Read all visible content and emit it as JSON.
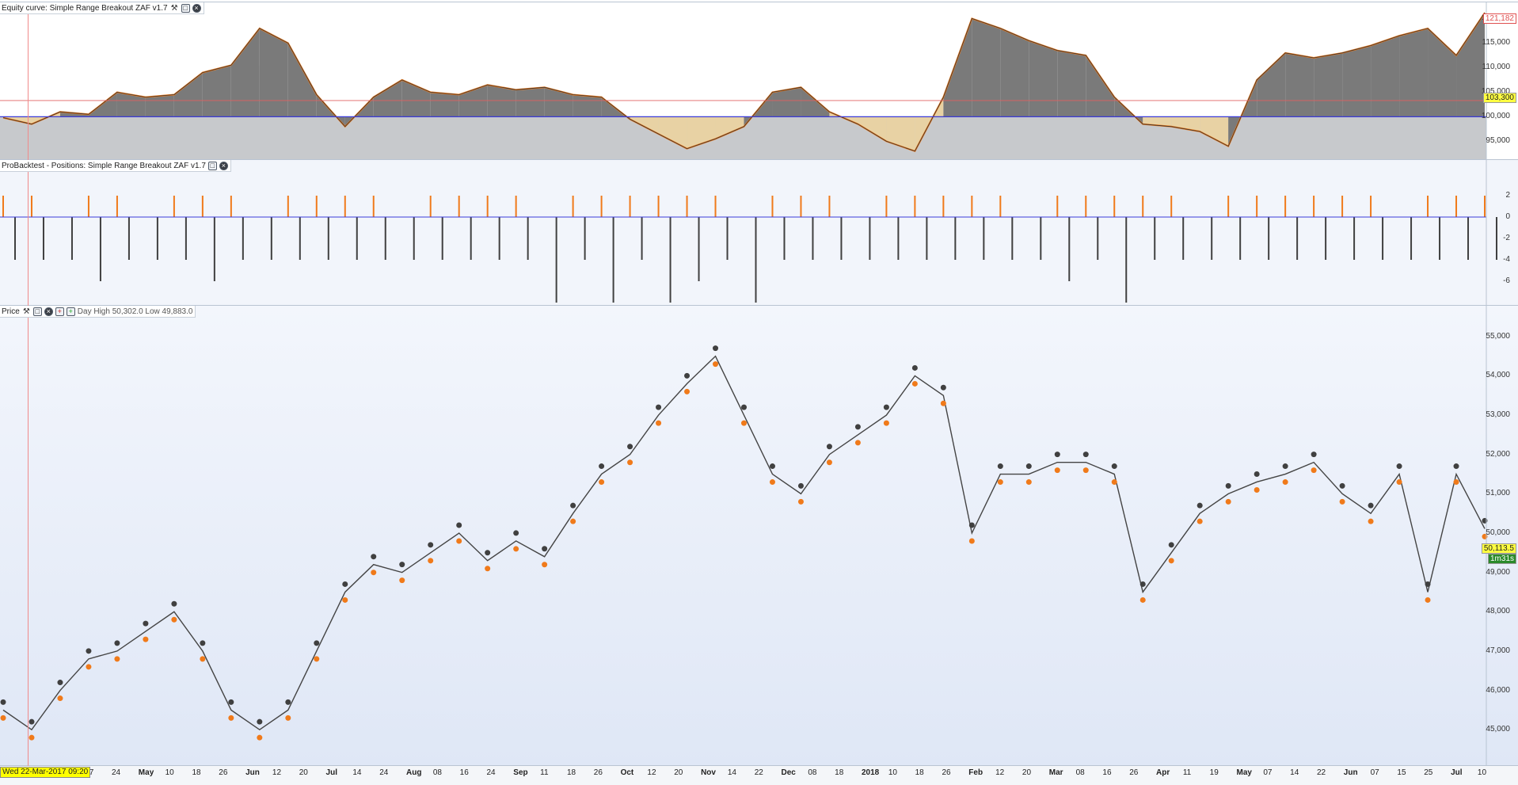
{
  "panels": {
    "equity": {
      "title": "Equity curve: Simple Range Breakout ZAF v1.7",
      "y_ticks": [
        "120,000",
        "115,000",
        "110,000",
        "105,000",
        "100,000",
        "95,000"
      ],
      "y_tick_values": [
        120000,
        115000,
        110000,
        105000,
        100000,
        95000
      ],
      "last_value": "121,182",
      "ref_value": "103,300",
      "colors": {
        "gain": "#7a7a7a",
        "loss": "#e8d2a4",
        "line": "#f07a1a",
        "base": "#3a3ad8",
        "ref": "#e06060"
      }
    },
    "positions": {
      "title": "ProBacktest - Positions: Simple Range Breakout ZAF v1.7",
      "y_ticks": [
        "2",
        "0",
        "-2",
        "-4",
        "-6"
      ],
      "y_tick_values": [
        2,
        0,
        -2,
        -4,
        -6
      ],
      "colors": {
        "long": "#f07a1a",
        "short": "#404040",
        "zero": "#3a3ad8"
      }
    },
    "price": {
      "title": "Price",
      "overlay_text": "Day High 50,302.0  Low 49,883.0",
      "y_ticks": [
        "55,000",
        "54,000",
        "53,000",
        "52,000",
        "51,000",
        "50,000",
        "49,000",
        "48,000",
        "47,000",
        "46,000",
        "45,000"
      ],
      "y_tick_values": [
        55000,
        54000,
        53000,
        52000,
        51000,
        50000,
        49000,
        48000,
        47000,
        46000,
        45000
      ],
      "last_price": "50,113.5",
      "timer": "1m31s",
      "colors": {
        "candle": "#444444",
        "buy": "#f07a1a",
        "sell": "#404040",
        "green": "#3a9a3a",
        "red": "#cc2222"
      }
    }
  },
  "x_axis": {
    "date_stamp": "Wed 22-Mar-2017 09:20",
    "labels": [
      "17",
      "24",
      "May",
      "10",
      "18",
      "26",
      "Jun",
      "12",
      "20",
      "Jul",
      "14",
      "24",
      "Aug",
      "08",
      "16",
      "24",
      "Sep",
      "11",
      "18",
      "26",
      "Oct",
      "12",
      "20",
      "Nov",
      "14",
      "22",
      "Dec",
      "08",
      "18",
      "2018",
      "10",
      "18",
      "26",
      "Feb",
      "12",
      "20",
      "Mar",
      "08",
      "16",
      "26",
      "Apr",
      "11",
      "19",
      "May",
      "07",
      "14",
      "22",
      "Jun",
      "07",
      "15",
      "25",
      "Jul",
      "10"
    ],
    "bold_labels": [
      "May",
      "Jun",
      "Jul",
      "Aug",
      "Sep",
      "Oct",
      "Nov",
      "Dec",
      "2018",
      "Feb",
      "Mar",
      "Apr",
      "May",
      "Jun",
      "Jul"
    ]
  },
  "chart_data": [
    {
      "type": "area",
      "title": "Equity curve: Simple Range Breakout ZAF v1.7",
      "ylim": [
        92000,
        122000
      ],
      "baseline": 100000,
      "x": [
        "17",
        "24",
        "May",
        "10",
        "18",
        "26",
        "Jun",
        "12",
        "20",
        "Jul",
        "14",
        "24",
        "Aug",
        "08",
        "16",
        "24",
        "Sep",
        "11",
        "18",
        "26",
        "Oct",
        "12",
        "20",
        "Nov",
        "14",
        "22",
        "Dec",
        "08",
        "18",
        "2018",
        "10",
        "18",
        "26",
        "Feb",
        "12",
        "20",
        "Mar",
        "08",
        "16",
        "26",
        "Apr",
        "11",
        "19",
        "May",
        "07",
        "14",
        "22",
        "Jun",
        "07",
        "15",
        "25",
        "Jul",
        "10"
      ],
      "values": [
        99800,
        98500,
        101000,
        100500,
        105000,
        104000,
        104500,
        109000,
        110500,
        118000,
        115000,
        104500,
        98000,
        104000,
        107500,
        105000,
        104500,
        106500,
        105500,
        106000,
        104500,
        104000,
        99500,
        96500,
        93500,
        95500,
        98000,
        105000,
        106000,
        101000,
        98500,
        95000,
        93000,
        104000,
        120000,
        118000,
        115500,
        113500,
        112500,
        104000,
        98500,
        98000,
        97000,
        94000,
        107500,
        113000,
        112000,
        113000,
        114500,
        116500,
        118000,
        112500,
        121182
      ]
    },
    {
      "type": "bar",
      "title": "ProBacktest - Positions: Simple Range Breakout ZAF v1.7",
      "ylim": [
        -8,
        4
      ],
      "series": [
        {
          "name": "long",
          "values": [
            2,
            2,
            0,
            2,
            2,
            0,
            2,
            2,
            2,
            0,
            2,
            2,
            2,
            2,
            0,
            2,
            2,
            2,
            2,
            0,
            2,
            2,
            2,
            2,
            2,
            2,
            0,
            2,
            2,
            2,
            0,
            2,
            2,
            2,
            2,
            2,
            0,
            2,
            2,
            2,
            2,
            2,
            0,
            2,
            2,
            2,
            2,
            2,
            2,
            0,
            2,
            2,
            2
          ]
        },
        {
          "name": "short",
          "values": [
            -4,
            -4,
            -4,
            -6,
            -4,
            -4,
            -4,
            -6,
            -4,
            -4,
            -4,
            -4,
            -4,
            -4,
            -4,
            -4,
            -4,
            -4,
            -4,
            -8,
            -4,
            -8,
            -4,
            -8,
            -6,
            -4,
            -8,
            -4,
            -4,
            -4,
            -4,
            -4,
            -4,
            -4,
            -4,
            -4,
            -4,
            -6,
            -4,
            -8,
            -4,
            -4,
            -4,
            -4,
            -4,
            -4,
            -4,
            -4,
            -4,
            -4,
            -4,
            -4,
            -4
          ]
        }
      ]
    },
    {
      "type": "line",
      "title": "Price",
      "ylim": [
        44500,
        55500
      ],
      "x": [
        "17",
        "24",
        "May",
        "10",
        "18",
        "26",
        "Jun",
        "12",
        "20",
        "Jul",
        "14",
        "24",
        "Aug",
        "08",
        "16",
        "24",
        "Sep",
        "11",
        "18",
        "26",
        "Oct",
        "12",
        "20",
        "Nov",
        "14",
        "22",
        "Dec",
        "08",
        "18",
        "2018",
        "10",
        "18",
        "26",
        "Feb",
        "12",
        "20",
        "Mar",
        "08",
        "16",
        "26",
        "Apr",
        "11",
        "19",
        "May",
        "07",
        "14",
        "22",
        "Jun",
        "07",
        "15",
        "25",
        "Jul",
        "10"
      ],
      "values": [
        45500,
        45000,
        46000,
        46800,
        47000,
        47500,
        48000,
        47000,
        45500,
        45000,
        45500,
        47000,
        48500,
        49200,
        49000,
        49500,
        50000,
        49300,
        49800,
        49400,
        50500,
        51500,
        52000,
        53000,
        53800,
        54500,
        53000,
        51500,
        51000,
        52000,
        52500,
        53000,
        54000,
        53500,
        50000,
        51500,
        51500,
        51800,
        51800,
        51500,
        48500,
        49500,
        50500,
        51000,
        51300,
        51500,
        51800,
        51000,
        50500,
        51500,
        48500,
        51500,
        50113
      ]
    }
  ]
}
